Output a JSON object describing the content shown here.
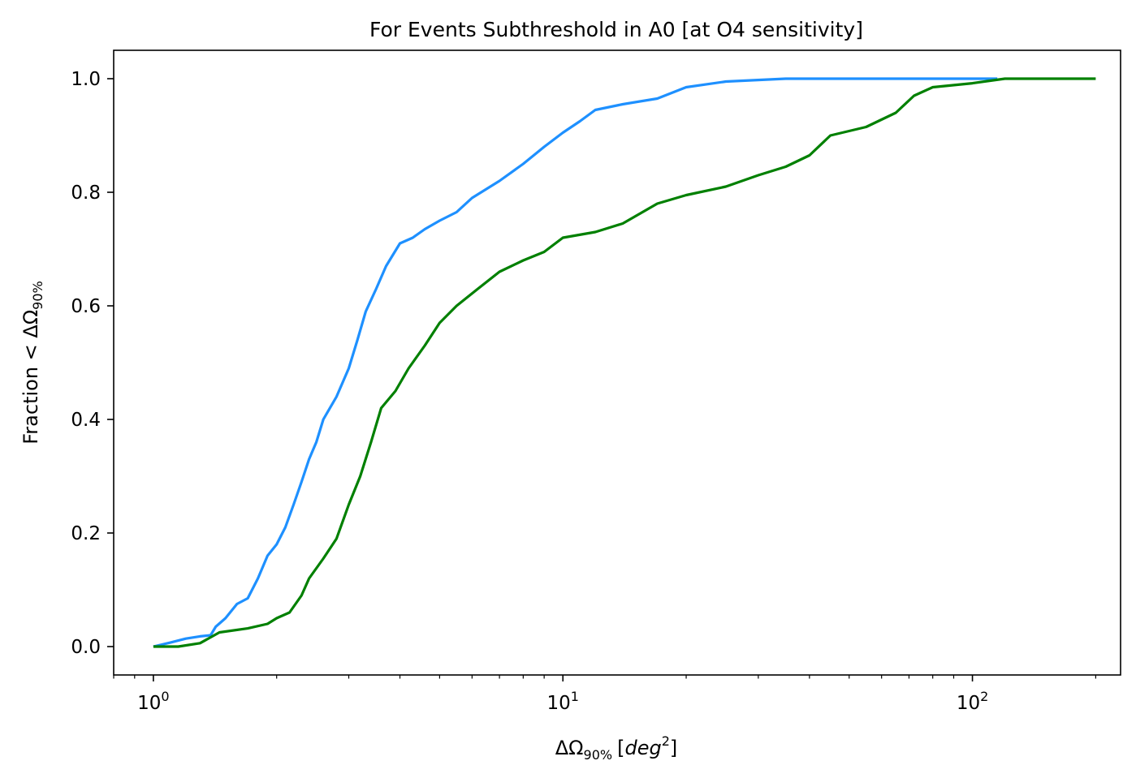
{
  "chart_data": {
    "type": "line",
    "title": "For Events Subthreshold in A0 [at O4 sensitivity]",
    "xlabel": {
      "prefix": "ΔΩ",
      "subscript": "90%",
      "unit_open": "[",
      "unit_var": "deg",
      "unit_sup": "2",
      "unit_close": "]"
    },
    "ylabel": {
      "prefix": "Fraction < ΔΩ",
      "subscript": "90%"
    },
    "x_scale": "log",
    "xlim": [
      0.8,
      230
    ],
    "ylim": [
      -0.05,
      1.05
    ],
    "x_ticks": [
      {
        "value": 1,
        "base": "10",
        "exp": "0"
      },
      {
        "value": 10,
        "base": "10",
        "exp": "1"
      },
      {
        "value": 100,
        "base": "10",
        "exp": "2"
      }
    ],
    "y_ticks": [
      {
        "value": 0.0,
        "label": "0.0"
      },
      {
        "value": 0.2,
        "label": "0.2"
      },
      {
        "value": 0.4,
        "label": "0.4"
      },
      {
        "value": 0.6,
        "label": "0.6"
      },
      {
        "value": 0.8,
        "label": "0.8"
      },
      {
        "value": 1.0,
        "label": "1.0"
      }
    ],
    "grid": false,
    "legend": "none",
    "series": [
      {
        "color": "#1e90ff",
        "points": [
          [
            1.0,
            0.0
          ],
          [
            1.1,
            0.007
          ],
          [
            1.2,
            0.014
          ],
          [
            1.3,
            0.018
          ],
          [
            1.38,
            0.02
          ],
          [
            1.42,
            0.035
          ],
          [
            1.5,
            0.05
          ],
          [
            1.6,
            0.075
          ],
          [
            1.7,
            0.085
          ],
          [
            1.8,
            0.12
          ],
          [
            1.9,
            0.16
          ],
          [
            2.0,
            0.18
          ],
          [
            2.1,
            0.21
          ],
          [
            2.2,
            0.25
          ],
          [
            2.3,
            0.29
          ],
          [
            2.4,
            0.33
          ],
          [
            2.5,
            0.36
          ],
          [
            2.6,
            0.4
          ],
          [
            2.8,
            0.44
          ],
          [
            3.0,
            0.49
          ],
          [
            3.15,
            0.54
          ],
          [
            3.3,
            0.59
          ],
          [
            3.5,
            0.63
          ],
          [
            3.7,
            0.67
          ],
          [
            4.0,
            0.71
          ],
          [
            4.3,
            0.72
          ],
          [
            4.6,
            0.735
          ],
          [
            5.0,
            0.75
          ],
          [
            5.5,
            0.765
          ],
          [
            6.0,
            0.79
          ],
          [
            7.0,
            0.82
          ],
          [
            8.0,
            0.85
          ],
          [
            9.0,
            0.88
          ],
          [
            10.0,
            0.905
          ],
          [
            11.0,
            0.925
          ],
          [
            12.0,
            0.945
          ],
          [
            14.0,
            0.955
          ],
          [
            17.0,
            0.965
          ],
          [
            20.0,
            0.985
          ],
          [
            25.0,
            0.995
          ],
          [
            35.0,
            1.0
          ],
          [
            60.0,
            1.0
          ],
          [
            100.0,
            1.0
          ],
          [
            115.0,
            1.0
          ]
        ]
      },
      {
        "color": "#008000",
        "points": [
          [
            1.0,
            0.0
          ],
          [
            1.15,
            0.0
          ],
          [
            1.3,
            0.006
          ],
          [
            1.45,
            0.025
          ],
          [
            1.7,
            0.032
          ],
          [
            1.9,
            0.04
          ],
          [
            2.0,
            0.05
          ],
          [
            2.15,
            0.06
          ],
          [
            2.3,
            0.09
          ],
          [
            2.4,
            0.12
          ],
          [
            2.6,
            0.155
          ],
          [
            2.8,
            0.19
          ],
          [
            3.0,
            0.25
          ],
          [
            3.2,
            0.3
          ],
          [
            3.4,
            0.36
          ],
          [
            3.6,
            0.42
          ],
          [
            3.9,
            0.45
          ],
          [
            4.2,
            0.49
          ],
          [
            4.6,
            0.53
          ],
          [
            5.0,
            0.57
          ],
          [
            5.5,
            0.6
          ],
          [
            6.2,
            0.63
          ],
          [
            7.0,
            0.66
          ],
          [
            8.0,
            0.68
          ],
          [
            9.0,
            0.695
          ],
          [
            10.0,
            0.72
          ],
          [
            12.0,
            0.73
          ],
          [
            14.0,
            0.745
          ],
          [
            17.0,
            0.78
          ],
          [
            20.0,
            0.795
          ],
          [
            25.0,
            0.81
          ],
          [
            30.0,
            0.83
          ],
          [
            35.0,
            0.845
          ],
          [
            40.0,
            0.865
          ],
          [
            45.0,
            0.9
          ],
          [
            55.0,
            0.915
          ],
          [
            65.0,
            0.94
          ],
          [
            72.0,
            0.97
          ],
          [
            80.0,
            0.985
          ],
          [
            100.0,
            0.992
          ],
          [
            120.0,
            1.0
          ],
          [
            200.0,
            1.0
          ]
        ]
      }
    ]
  }
}
